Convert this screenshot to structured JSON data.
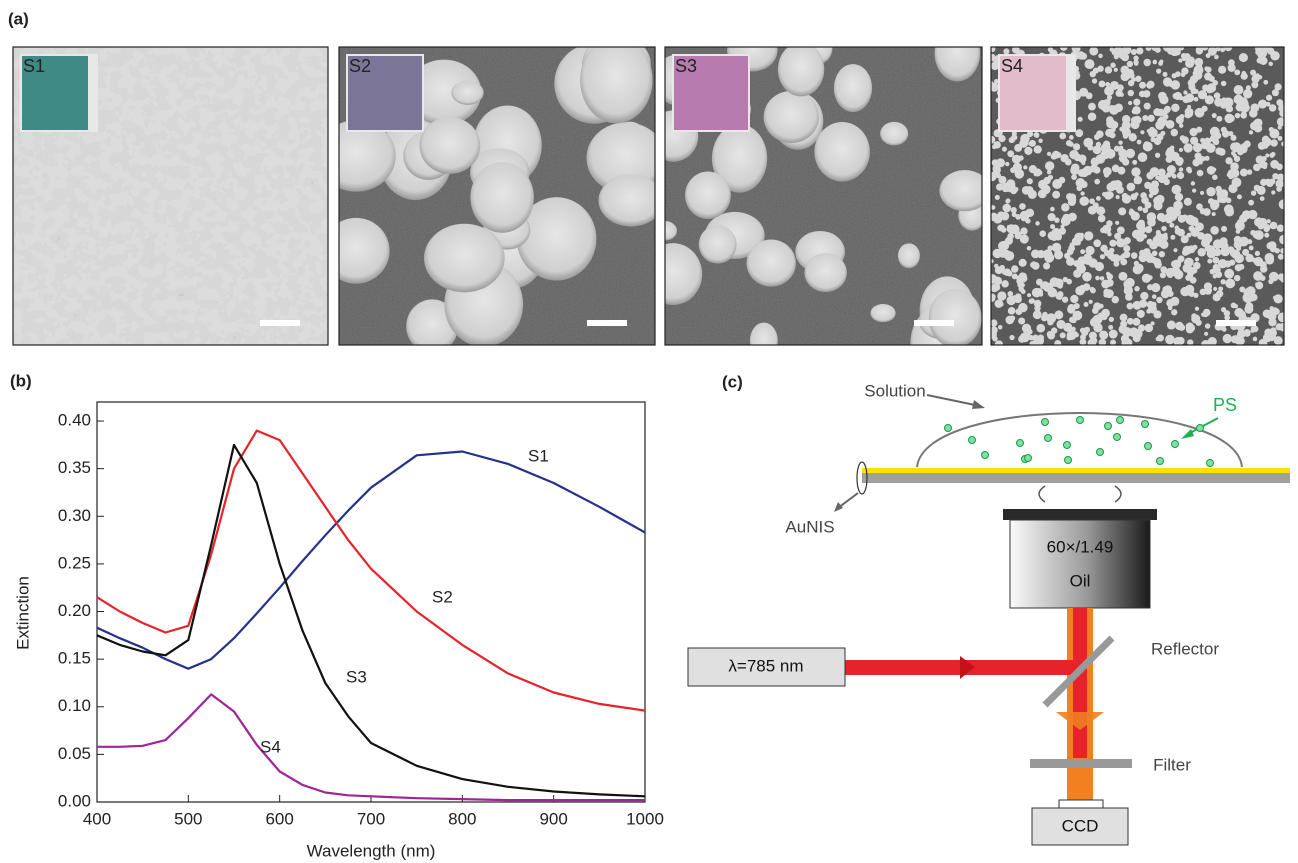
{
  "panel_a": {
    "label": "(a)",
    "images": [
      {
        "label": "S1"
      },
      {
        "label": "S2"
      },
      {
        "label": "S3"
      },
      {
        "label": "S4"
      }
    ]
  },
  "chart_data": {
    "type": "line",
    "panel_label": "(b)",
    "x_label": "Wavelength (nm)",
    "y_label": "Extinction",
    "x": [
      400,
      425,
      450,
      475,
      500,
      525,
      550,
      575,
      600,
      625,
      650,
      675,
      700,
      750,
      800,
      850,
      900,
      950,
      1000
    ],
    "series": [
      {
        "name": "S1",
        "color": "#26318c",
        "values": [
          0.183,
          0.172,
          0.162,
          0.15,
          0.14,
          0.15,
          0.172,
          0.198,
          0.225,
          0.253,
          0.28,
          0.306,
          0.33,
          0.364,
          0.368,
          0.355,
          0.335,
          0.31,
          0.283
        ]
      },
      {
        "name": "S2",
        "color": "#e8222a",
        "values": [
          0.215,
          0.2,
          0.188,
          0.178,
          0.185,
          0.26,
          0.35,
          0.39,
          0.38,
          0.345,
          0.31,
          0.275,
          0.245,
          0.2,
          0.165,
          0.135,
          0.115,
          0.103,
          0.096
        ]
      },
      {
        "name": "S3",
        "color": "#111111",
        "values": [
          0.175,
          0.165,
          0.158,
          0.154,
          0.17,
          0.27,
          0.375,
          0.335,
          0.25,
          0.18,
          0.125,
          0.09,
          0.062,
          0.038,
          0.024,
          0.016,
          0.011,
          0.008,
          0.006
        ]
      },
      {
        "name": "S4",
        "color": "#a0249a",
        "values": [
          0.058,
          0.058,
          0.059,
          0.065,
          0.088,
          0.113,
          0.095,
          0.06,
          0.032,
          0.018,
          0.01,
          0.007,
          0.006,
          0.004,
          0.003,
          0.002,
          0.002,
          0.002,
          0.002
        ]
      }
    ],
    "xlim": [
      400,
      1000
    ],
    "ylim": [
      0,
      0.42
    ],
    "xticks": [
      400,
      500,
      600,
      700,
      800,
      900,
      1000
    ],
    "yticks": [
      {
        "value": 0,
        "label": "0.00"
      },
      {
        "value": 0.05,
        "label": "0.05"
      },
      {
        "value": 0.1,
        "label": "0.10"
      },
      {
        "value": 0.15,
        "label": "0.15"
      },
      {
        "value": 0.2,
        "label": "0.20"
      },
      {
        "value": 0.25,
        "label": "0.25"
      },
      {
        "value": 0.3,
        "label": "0.30"
      },
      {
        "value": 0.35,
        "label": "0.35"
      },
      {
        "value": 0.4,
        "label": "0.40"
      }
    ]
  },
  "panel_c": {
    "label": "(c)",
    "solution": "Solution",
    "particles": "PS",
    "substrate": "AuNIS",
    "objective": "60×/1.49",
    "immersion": "Oil",
    "laser": "λ=785 nm",
    "reflector": "Reflector",
    "filter": "Filter",
    "detector": "CCD"
  }
}
